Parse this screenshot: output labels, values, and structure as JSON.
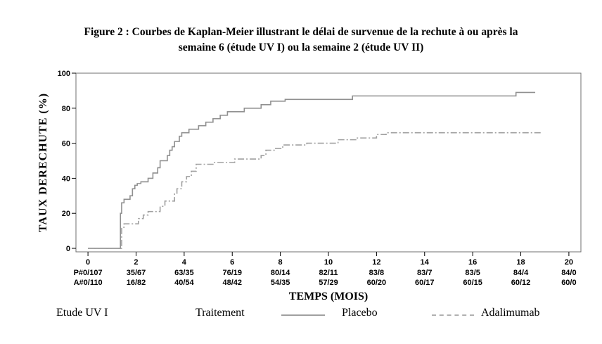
{
  "title": {
    "line1": "Figure 2 : Courbes de Kaplan-Meier illustrant le délai de survenue de la rechute à ou après la",
    "line2": "semaine 6 (étude UV I) ou la semaine 2 (étude UV II)"
  },
  "chart_data": {
    "type": "line",
    "title": "",
    "xlabel": "TEMPS (MOIS)",
    "ylabel": "TAUX DERECHUTE (%)",
    "xlim": [
      -0.5,
      20.5
    ],
    "ylim": [
      -2,
      100
    ],
    "x_ticks": [
      0,
      2,
      4,
      6,
      8,
      10,
      12,
      14,
      16,
      18,
      20
    ],
    "y_ticks": [
      0,
      20,
      40,
      60,
      80,
      100
    ],
    "grid": false,
    "at_risk": {
      "P": [
        "P#0/107",
        "35/67",
        "63/35",
        "76/19",
        "80/14",
        "82/11",
        "83/8",
        "83/7",
        "83/5",
        "84/4",
        "84/0"
      ],
      "A": [
        "A#0/110",
        "16/82",
        "40/54",
        "48/42",
        "54/35",
        "57/29",
        "60/20",
        "60/17",
        "60/15",
        "60/12",
        "60/0"
      ]
    },
    "series": [
      {
        "name": "Placebo",
        "style": "solid",
        "color": "#909090",
        "x": [
          0,
          1.3,
          1.35,
          1.4,
          1.5,
          1.75,
          1.85,
          1.95,
          2.05,
          2.2,
          2.5,
          2.7,
          2.9,
          3.0,
          3.3,
          3.4,
          3.5,
          3.6,
          3.8,
          3.9,
          4.2,
          4.6,
          4.9,
          5.2,
          5.5,
          5.8,
          6.5,
          7.2,
          7.6,
          8.2,
          11.0,
          17.8,
          18.6
        ],
        "y": [
          0,
          0,
          20,
          26,
          28,
          30,
          34,
          36,
          37,
          38,
          40,
          43,
          46,
          50,
          53,
          56,
          58,
          61,
          64,
          66,
          68,
          70,
          72,
          74,
          76,
          78,
          80,
          82,
          84,
          85,
          87,
          89,
          89
        ]
      },
      {
        "name": "Adalimumab",
        "style": "dashed",
        "color": "#a0a0a0",
        "x": [
          0,
          1.3,
          1.4,
          1.5,
          2.1,
          2.3,
          2.5,
          3.0,
          3.2,
          3.6,
          3.7,
          3.9,
          4.1,
          4.3,
          4.5,
          5.2,
          6.1,
          7.2,
          7.4,
          7.8,
          8.1,
          9.1,
          10.4,
          11.2,
          12.0,
          12.4,
          18.9
        ],
        "y": [
          0,
          0,
          12,
          14,
          17,
          19,
          21,
          24,
          27,
          31,
          34,
          38,
          41,
          44,
          48,
          49,
          51,
          53,
          56,
          57,
          59,
          60,
          62,
          63,
          65,
          66,
          66
        ]
      }
    ],
    "legend": {
      "study": "Etude UV I",
      "treatment_label": "Traitement",
      "entries": [
        "Placebo",
        "Adalimumab"
      ]
    }
  }
}
